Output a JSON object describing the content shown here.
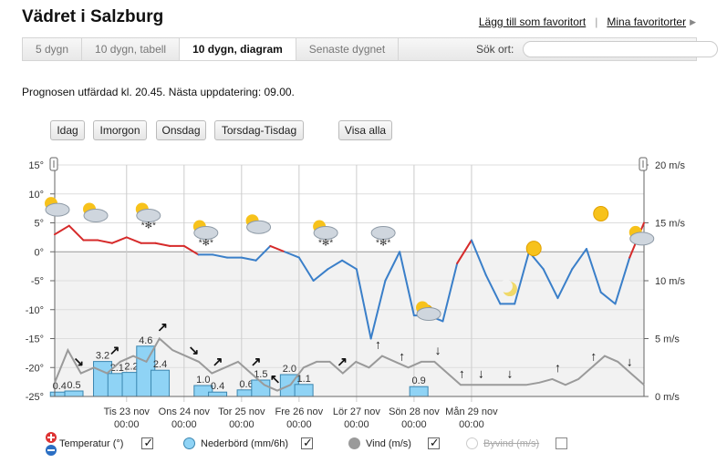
{
  "header": {
    "title": "Vädret i Salzburg",
    "add_favorite": "Lägg till som favoritort",
    "my_favorites": "Mina favoritorter"
  },
  "tabs": [
    {
      "label": "5 dygn",
      "active": false
    },
    {
      "label": "10 dygn, tabell",
      "active": false
    },
    {
      "label": "10 dygn, diagram",
      "active": true
    },
    {
      "label": "Senaste dygnet",
      "active": false
    }
  ],
  "search": {
    "label": "Sök ort:",
    "placeholder": ""
  },
  "forecast_note": "Prognosen utfärdad kl. 20.45. Nästa uppdatering: 09.00.",
  "range_buttons": [
    "Idag",
    "Imorgon",
    "Onsdag",
    "Torsdag-Tisdag",
    "Visa alla"
  ],
  "legend": {
    "temperature": "Temperatur (°)",
    "precip": "Nederbörd (mm/6h)",
    "wind": "Vind (m/s)",
    "gust": "Byvind (m/s)",
    "checked": [
      true,
      true,
      true,
      false
    ]
  },
  "colors": {
    "temp_warm": "#d62a2a",
    "temp_cold": "#3a7fc9",
    "precip": "#8fd3f5",
    "wind": "#9a9a9a"
  },
  "chart_data": {
    "type": "line",
    "x_labels": [
      {
        "day": "Tis 23 nov",
        "time": "00:00"
      },
      {
        "day": "Ons 24 nov",
        "time": "00:00"
      },
      {
        "day": "Tor 25 nov",
        "time": "00:00"
      },
      {
        "day": "Fre 26 nov",
        "time": "00:00"
      },
      {
        "day": "Lör 27 nov",
        "time": "00:00"
      },
      {
        "day": "Sön 28 nov",
        "time": "00:00"
      },
      {
        "day": "Mån 29 nov",
        "time": "00:00"
      }
    ],
    "y_left": {
      "ticks": [
        "15°",
        "10°",
        "5°",
        "0°",
        "-5°",
        "-10°",
        "-15°",
        "-20°",
        "-25°"
      ],
      "ylim": [
        -25,
        15
      ]
    },
    "y_right": {
      "ticks": [
        "20 m/s",
        "15 m/s",
        "10 m/s",
        "5 m/s",
        "0 m/s"
      ],
      "ylim": [
        0,
        20
      ]
    },
    "temperature": {
      "hours": [
        0,
        6,
        12,
        18,
        24,
        30,
        36,
        42,
        48,
        54,
        60,
        66,
        72,
        78,
        84,
        90,
        96,
        102,
        108,
        114,
        120,
        126,
        132,
        138,
        144,
        150,
        156,
        162,
        168,
        174,
        180,
        186,
        192,
        198,
        204,
        210,
        216,
        222,
        228,
        234,
        240,
        246
      ],
      "values": [
        3,
        4.5,
        2,
        2,
        1.5,
        2.5,
        1.5,
        1.5,
        1,
        1,
        -0.5,
        -0.5,
        -1,
        -1,
        -1.5,
        1,
        0,
        -1,
        -5,
        -3,
        -1.5,
        -3,
        -15,
        -5,
        0,
        -11,
        -11,
        -12,
        -2,
        2,
        -4,
        -9,
        -9,
        0,
        -3,
        -8,
        -3,
        0.5,
        -7,
        -9,
        -1,
        5
      ],
      "icons": [
        "partly-cloudy",
        "partly-cloudy",
        "snow-partly-cloudy",
        "snow-partly-cloudy",
        "partly-cloudy",
        "snow-partly-cloudy",
        "snow-cloudy",
        "sun-cloud",
        "moon",
        "sun",
        "sun",
        "partly-cloudy"
      ]
    },
    "precipitation": {
      "labels": [
        "0.4",
        "0.5",
        "3.2",
        "2.1",
        "2.2",
        "4.6",
        "2.4",
        "1.0",
        "0.4",
        "0.6",
        "1.5",
        "2.0",
        "1.1",
        "0.9"
      ]
    },
    "wind": {
      "values": [
        1.2,
        4,
        2,
        2.5,
        2,
        3,
        3.5,
        3,
        5,
        4,
        3.5,
        3,
        2,
        2.5,
        3,
        2,
        1,
        0.5,
        1,
        2.5,
        3,
        3,
        2,
        3,
        2.5,
        3.5,
        3,
        2.5,
        3,
        3,
        2,
        1,
        1,
        1,
        1,
        1,
        1,
        1.2,
        1.5,
        1,
        1.5,
        2.5,
        3.5,
        3,
        2,
        1
      ]
    },
    "grid": true
  }
}
